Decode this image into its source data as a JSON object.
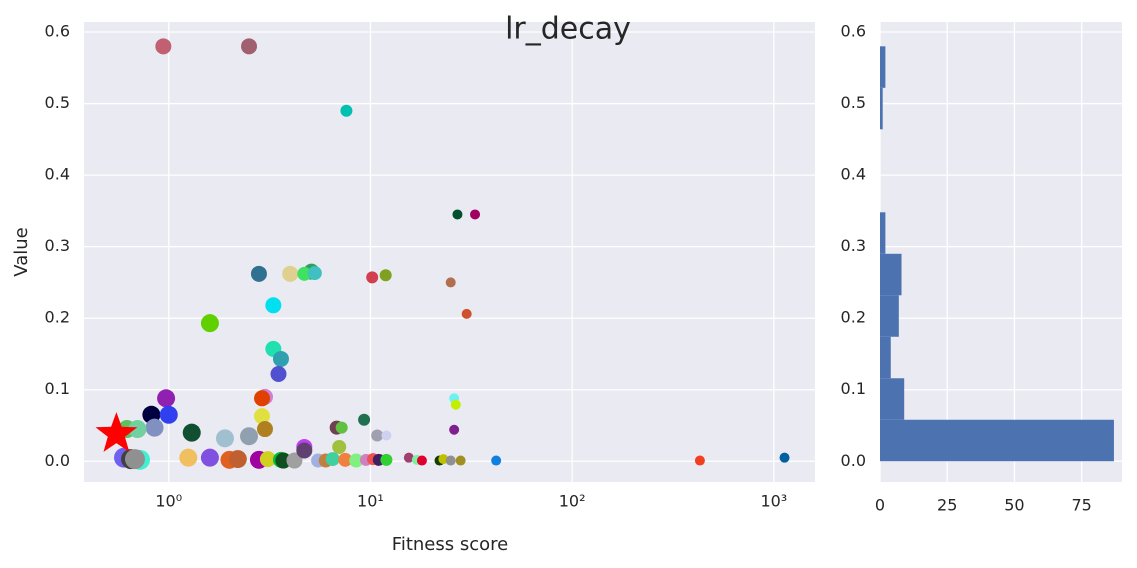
{
  "chart_data": [
    {
      "type": "scatter",
      "title": "lr_decay",
      "x_label": "Fitness score",
      "y_label": "Value",
      "log_x": true,
      "grid": true,
      "xlim": [
        0.38,
        1600
      ],
      "ylim": [
        -0.029,
        0.614
      ],
      "xticks": [
        {
          "value": 1,
          "label": "10⁰"
        },
        {
          "value": 10,
          "label": "10¹"
        },
        {
          "value": 100,
          "label": "10²"
        },
        {
          "value": 1000,
          "label": "10³"
        }
      ],
      "yticks": [
        {
          "value": 0,
          "label": "0.0"
        },
        0.1,
        0.2,
        0.3,
        0.4,
        0.5,
        0.6
      ],
      "x": [
        0.94,
        2.5,
        7.6,
        27,
        33,
        2.8,
        4.0,
        5.1,
        4.7,
        5.3,
        10.2,
        11.9,
        25,
        30,
        3.3,
        1.6,
        3.3,
        3.6,
        3.5,
        3.0,
        2.9,
        0.97,
        0.82,
        1.0,
        2.9,
        26,
        26.5,
        9.3,
        6.8,
        7.2,
        3.0,
        0.85,
        1.3,
        1.9,
        2.5,
        10.8,
        12,
        26,
        4.7,
        7.0,
        0.62,
        0.7,
        0.6,
        0.65,
        0.72,
        0.68,
        1.25,
        1.6,
        2.0,
        2.2,
        2.8,
        3.1,
        3.6,
        3.7,
        4.2,
        4.7,
        5.5,
        6.0,
        6.5,
        7.5,
        8.5,
        9.5,
        10.3,
        11,
        12,
        15.5,
        17,
        18,
        22,
        23,
        25,
        28,
        42,
        430,
        1130
      ],
      "values": [
        0.58,
        0.58,
        0.49,
        0.345,
        0.345,
        0.262,
        0.262,
        0.265,
        0.262,
        0.263,
        0.257,
        0.26,
        0.25,
        0.206,
        0.218,
        0.193,
        0.157,
        0.143,
        0.122,
        0.09,
        0.088,
        0.088,
        0.065,
        0.065,
        0.063,
        0.088,
        0.079,
        0.058,
        0.047,
        0.047,
        0.045,
        0.047,
        0.04,
        0.032,
        0.035,
        0.036,
        0.036,
        0.044,
        0.02,
        0.02,
        0.045,
        0.045,
        0.005,
        0.003,
        0.002,
        0.003,
        0.005,
        0.005,
        0.002,
        0.003,
        0.002,
        0.003,
        0.002,
        0.001,
        0.001,
        0.015,
        0.001,
        0.001,
        0.003,
        0.002,
        0.001,
        0.002,
        0.003,
        0.002,
        0.002,
        0.005,
        0.002,
        0.001,
        0.001,
        0.003,
        0.001,
        0.001,
        0.001,
        0.001,
        0.005
      ],
      "sizes": [
        8,
        8,
        6,
        5,
        5,
        8,
        8,
        8,
        7,
        7,
        6,
        6,
        5,
        5,
        8,
        9,
        8,
        8,
        8,
        8,
        8,
        9,
        9,
        9,
        8,
        5,
        5,
        6,
        7,
        6,
        8,
        9,
        9,
        9,
        9,
        6,
        5,
        5,
        8,
        7,
        9,
        9,
        10,
        10,
        10,
        10,
        9,
        9,
        9,
        9,
        9,
        8,
        8,
        8,
        8,
        8,
        7,
        7,
        7,
        7,
        7,
        6,
        6,
        6,
        6,
        5,
        5,
        5,
        5,
        5,
        5,
        5,
        5,
        5,
        5
      ],
      "colors": [
        "#c06070",
        "#a06070",
        "#00c0b0",
        "#005030",
        "#a00060",
        "#307090",
        "#e0d090",
        "#30a060",
        "#40e060",
        "#40c0c0",
        "#d04050",
        "#80a020",
        "#b07050",
        "#d05030",
        "#00e0f0",
        "#60d000",
        "#20e0b0",
        "#30a0b0",
        "#5050d0",
        "#d080d0",
        "#e04000",
        "#9020b0",
        "#000040",
        "#3040f0",
        "#e0e040",
        "#70f0f0",
        "#c0f000",
        "#207050",
        "#704050",
        "#60c040",
        "#b08020",
        "#8090c0",
        "#105030",
        "#a0c0d0",
        "#90a0b0",
        "#a0a0b0",
        "#d0d0f0",
        "#802090",
        "#c040f0",
        "#a0c040",
        "#60c060",
        "#70d0a0",
        "#7060f0",
        "#404040",
        "#40f0d0",
        "#909090",
        "#f0c060",
        "#8050e0",
        "#e06020",
        "#c06030",
        "#a000a0",
        "#d0d020",
        "#00c040",
        "#105020",
        "#a0a0a0",
        "#604070",
        "#a0b0e0",
        "#c08040",
        "#40d0a0",
        "#f08040",
        "#80f080",
        "#d080c0",
        "#f05050",
        "#402060",
        "#30d030",
        "#a04070",
        "#80f0a0",
        "#e00030",
        "#104000",
        "#c0c000",
        "#909090",
        "#a09020",
        "#1080e0",
        "#f04020",
        "#0060a0"
      ],
      "highlight": {
        "x": 0.55,
        "y": 0.038,
        "color": "#ff0000",
        "marker": "star"
      }
    },
    {
      "type": "histogram",
      "orientation": "horizontal",
      "grid": true,
      "color": "#4c72b0",
      "xlim": [
        0,
        90
      ],
      "ylim": [
        -0.029,
        0.614
      ],
      "xticks": [
        0,
        25,
        50,
        75
      ],
      "yticks": [
        {
          "value": 0,
          "label": "0.0"
        },
        0.1,
        0.2,
        0.3,
        0.4,
        0.5,
        0.6
      ],
      "bins": [
        0,
        0.058,
        0.116,
        0.174,
        0.232,
        0.29,
        0.348,
        0.406,
        0.464,
        0.522,
        0.58
      ],
      "values": [
        87,
        9,
        4,
        7,
        8,
        2,
        0,
        0,
        1,
        2
      ]
    }
  ]
}
